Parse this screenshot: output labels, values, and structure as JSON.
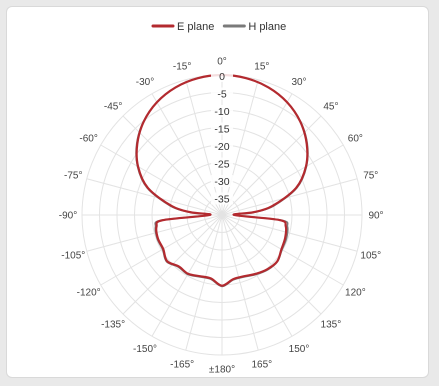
{
  "chart_data": {
    "type": "polar-line",
    "title": "",
    "angle_unit": "degrees",
    "radial_unit": "dB",
    "radial_range": [
      -40,
      0
    ],
    "radial_ticks": [
      "0",
      "-5",
      "-10",
      "-15",
      "-20",
      "-25",
      "-30",
      "-35"
    ],
    "radial_tick_values": [
      0,
      -5,
      -10,
      -15,
      -20,
      -25,
      -30,
      -35
    ],
    "angle_ticks": [
      {
        "angle": 0,
        "label": "0°"
      },
      {
        "angle": 15,
        "label": "15°"
      },
      {
        "angle": 30,
        "label": "30°"
      },
      {
        "angle": 45,
        "label": "45°"
      },
      {
        "angle": 60,
        "label": "60°"
      },
      {
        "angle": 75,
        "label": "75°"
      },
      {
        "angle": 90,
        "label": "90°"
      },
      {
        "angle": 105,
        "label": "105°"
      },
      {
        "angle": 120,
        "label": "120°"
      },
      {
        "angle": 135,
        "label": "135°"
      },
      {
        "angle": 150,
        "label": "150°"
      },
      {
        "angle": 165,
        "label": "165°"
      },
      {
        "angle": 180,
        "label": "±180°"
      },
      {
        "angle": -165,
        "label": "-165°"
      },
      {
        "angle": -150,
        "label": "-150°"
      },
      {
        "angle": -135,
        "label": "-135°"
      },
      {
        "angle": -120,
        "label": "-120°"
      },
      {
        "angle": -105,
        "label": "-105°"
      },
      {
        "angle": -90,
        "label": "-90°"
      },
      {
        "angle": -75,
        "label": "-75°"
      },
      {
        "angle": -60,
        "label": "-60°"
      },
      {
        "angle": -45,
        "label": "-45°"
      },
      {
        "angle": -30,
        "label": "-30°"
      },
      {
        "angle": -15,
        "label": "-15°"
      }
    ],
    "legend_position": "top-right",
    "grid": true,
    "series": [
      {
        "name": "E plane",
        "color": "#b32a2f",
        "angles": [
          0,
          10,
          20,
          30,
          40,
          50,
          60,
          70,
          80,
          85,
          90,
          95,
          100,
          110,
          120,
          130,
          140,
          150,
          160,
          170,
          180,
          -170,
          -160,
          -150,
          -140,
          -130,
          -120,
          -110,
          -100,
          -95,
          -90,
          -85,
          -80,
          -70,
          -60,
          -50,
          -40,
          -30,
          -20,
          -10
        ],
        "values": [
          0,
          -0.3,
          -1.2,
          -2.8,
          -5.2,
          -8.4,
          -12.3,
          -17.5,
          -25.5,
          -31,
          -36.5,
          -23.5,
          -21.5,
          -20.8,
          -20.4,
          -19.4,
          -19.8,
          -20.6,
          -21.4,
          -21.4,
          -19.8,
          -21.6,
          -21.4,
          -20.6,
          -20.8,
          -19.5,
          -20.6,
          -20.5,
          -21,
          -23,
          -36.5,
          -31,
          -25.5,
          -17.5,
          -12.3,
          -8.4,
          -5.2,
          -2.8,
          -1.2,
          -0.3
        ]
      },
      {
        "name": "H plane",
        "color": "#7a7a7a",
        "angles": [
          0,
          10,
          20,
          30,
          40,
          50,
          60,
          70,
          80,
          85,
          90,
          95,
          100,
          110,
          120,
          130,
          140,
          150,
          160,
          170,
          180,
          -170,
          -160,
          -150,
          -140,
          -130,
          -120,
          -110,
          -100,
          -95,
          -90,
          -85,
          -80,
          -70,
          -60,
          -50,
          -40,
          -30,
          -20,
          -10
        ],
        "values": [
          0,
          -0.3,
          -1.2,
          -2.8,
          -5.1,
          -8.2,
          -12.1,
          -17.2,
          -25,
          -30.5,
          -36,
          -22.8,
          -21,
          -20.4,
          -20.2,
          -19.3,
          -19.6,
          -20.4,
          -21.2,
          -21.2,
          -19.6,
          -21.4,
          -21.2,
          -20.4,
          -20.6,
          -19.3,
          -20.4,
          -20.3,
          -20.7,
          -22.5,
          -36,
          -30.5,
          -25,
          -17.2,
          -12.1,
          -8.2,
          -5.1,
          -2.8,
          -1.2,
          -0.3
        ]
      }
    ]
  }
}
